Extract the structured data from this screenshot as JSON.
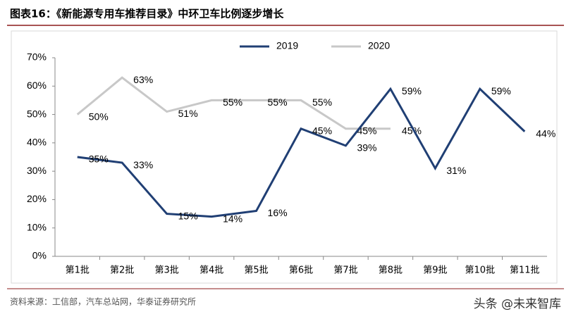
{
  "chart_data": {
    "type": "line",
    "title": "图表16：《新能源专用车推荐目录》中环卫车比例逐步增长",
    "source": "资料来源：工信部，汽车总站网，华泰证券研究所",
    "watermark": "头条 @未来智库",
    "categories": [
      "第1批",
      "第2批",
      "第3批",
      "第4批",
      "第5批",
      "第6批",
      "第7批",
      "第8批",
      "第9批",
      "第10批",
      "第11批"
    ],
    "series": [
      {
        "name": "2019",
        "color": "#203f74",
        "values": [
          35,
          33,
          15,
          14,
          16,
          45,
          39,
          59,
          31,
          59,
          44
        ],
        "value_labels": [
          "35%",
          "33%",
          "15%",
          "14%",
          "16%",
          "45%",
          "39%",
          "59%",
          "31%",
          "59%",
          "44%"
        ]
      },
      {
        "name": "2020",
        "color": "#c8c8c8",
        "values": [
          50,
          63,
          51,
          55,
          55,
          55,
          45,
          45,
          null,
          null,
          null
        ],
        "value_labels": [
          "50%",
          "63%",
          "51%",
          "55%",
          "55%",
          "55%",
          "45%",
          "45%",
          null,
          null,
          null
        ]
      }
    ],
    "ylim": [
      0,
      70
    ],
    "yticks": [
      {
        "value": 0,
        "label": "0%"
      },
      {
        "value": 10,
        "label": "10%"
      },
      {
        "value": 20,
        "label": "20%"
      },
      {
        "value": 30,
        "label": "30%"
      },
      {
        "value": 40,
        "label": "40%"
      },
      {
        "value": 50,
        "label": "50%"
      },
      {
        "value": 60,
        "label": "60%"
      },
      {
        "value": 70,
        "label": "70%"
      }
    ],
    "legend": "top"
  }
}
